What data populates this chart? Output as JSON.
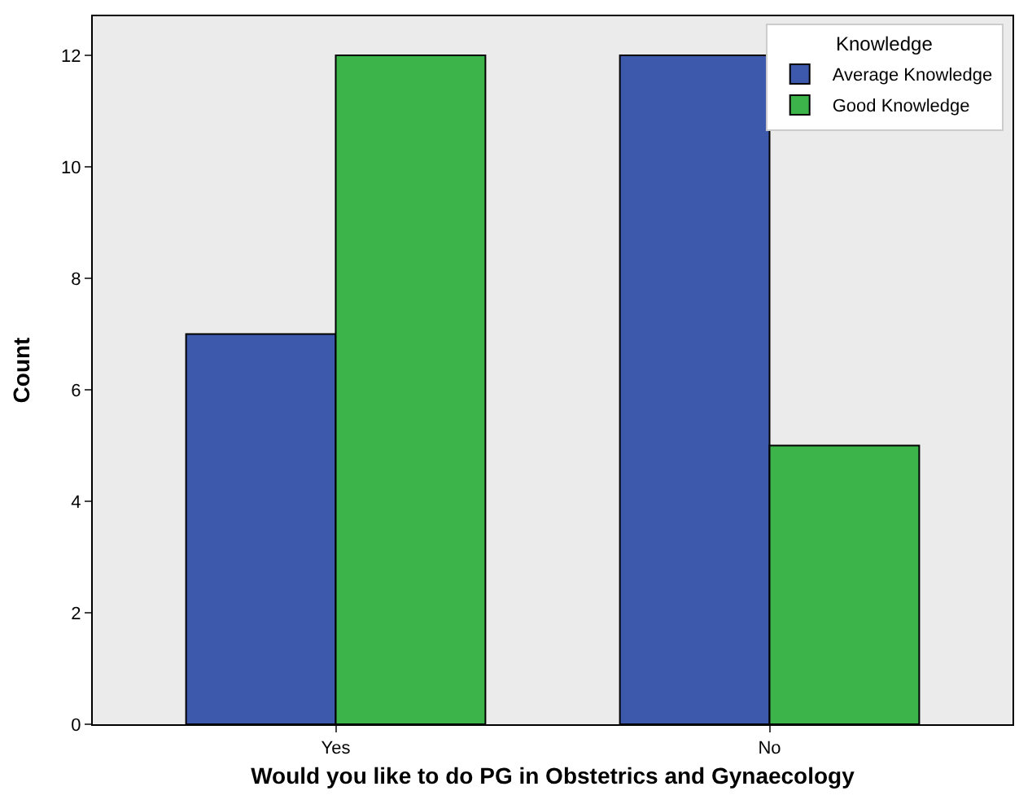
{
  "chart_data": {
    "type": "bar",
    "xlabel": "Would you like to do PG in Obstetrics and Gynaecology",
    "ylabel": "Count",
    "categories": [
      "Yes",
      "No"
    ],
    "series": [
      {
        "name": "Average Knowledge",
        "color": "#3d59ab",
        "values": [
          7,
          12
        ]
      },
      {
        "name": "Good Knowledge",
        "color": "#3cb44a",
        "values": [
          12,
          5
        ]
      }
    ],
    "legend_title": "Knowledge",
    "legend": "top right",
    "grid": false,
    "ylim": [
      0,
      12.7
    ],
    "yticks": [
      0,
      2,
      4,
      6,
      8,
      10,
      12
    ]
  }
}
